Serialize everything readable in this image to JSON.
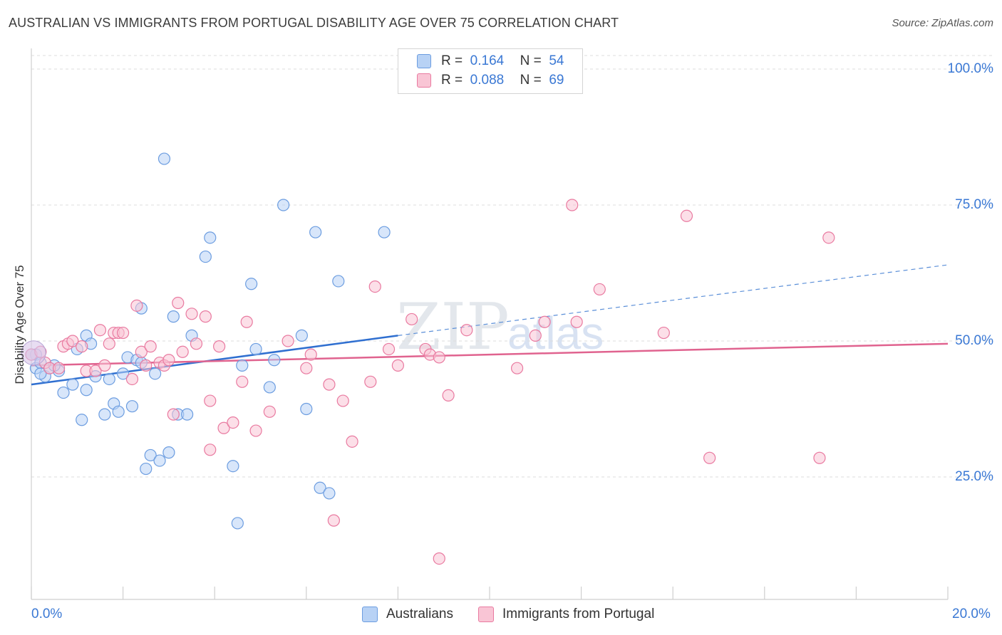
{
  "title": "AUSTRALIAN VS IMMIGRANTS FROM PORTUGAL DISABILITY AGE OVER 75 CORRELATION CHART",
  "source": "Source: ZipAtlas.com",
  "legend": {
    "r_label": "R =",
    "n_label": "N =",
    "rows": [
      {
        "r": "0.164",
        "n": "54",
        "color": "#a9c8f2"
      },
      {
        "r": "0.088",
        "n": "69",
        "color": "#f7b9cc"
      }
    ]
  },
  "chart_data": {
    "type": "scatter",
    "title": "AUSTRALIAN VS IMMIGRANTS FROM PORTUGAL DISABILITY AGE OVER 75 CORRELATION CHART",
    "xlabel": "",
    "ylabel": "Disability Age Over 75",
    "xlim": [
      0,
      20
    ],
    "ylim": [
      0,
      100
    ],
    "x_tick_labels": [
      "0.0%",
      "20.0%"
    ],
    "y_tick_labels": [
      "100.0%",
      "75.0%",
      "50.0%",
      "25.0%"
    ],
    "y_ticks": [
      100,
      75,
      50,
      25
    ],
    "grid": true,
    "legend_position": "top-center",
    "series": [
      {
        "name": "Australians",
        "color": "#6c9de0",
        "fill": "#b8d2f5",
        "trend": {
          "x0": 0,
          "y0": 42.0,
          "x1": 8.0,
          "y1": 51.0,
          "dashed_to_x": 20,
          "dashed_to_y": 64.0
        },
        "points": [
          [
            0.1,
            47.5
          ],
          [
            0.1,
            45.0
          ],
          [
            0.2,
            46.0
          ],
          [
            0.3,
            43.5
          ],
          [
            0.4,
            45.0
          ],
          [
            0.6,
            44.5
          ],
          [
            0.5,
            45.5
          ],
          [
            0.7,
            40.5
          ],
          [
            0.9,
            42.0
          ],
          [
            1.0,
            48.5
          ],
          [
            1.1,
            35.5
          ],
          [
            1.2,
            51.0
          ],
          [
            1.2,
            41.0
          ],
          [
            1.3,
            49.5
          ],
          [
            1.4,
            43.5
          ],
          [
            1.6,
            36.5
          ],
          [
            1.7,
            43.0
          ],
          [
            1.8,
            38.5
          ],
          [
            1.9,
            37.0
          ],
          [
            2.0,
            44.0
          ],
          [
            2.1,
            47.0
          ],
          [
            2.2,
            38.0
          ],
          [
            2.3,
            46.5
          ],
          [
            2.4,
            46.0
          ],
          [
            2.4,
            56.0
          ],
          [
            2.5,
            26.5
          ],
          [
            2.6,
            29.0
          ],
          [
            2.7,
            44.0
          ],
          [
            2.8,
            28.0
          ],
          [
            2.9,
            83.5
          ],
          [
            3.0,
            29.5
          ],
          [
            3.1,
            54.5
          ],
          [
            3.2,
            36.5
          ],
          [
            3.4,
            36.5
          ],
          [
            3.5,
            51.0
          ],
          [
            3.8,
            65.5
          ],
          [
            3.9,
            69.0
          ],
          [
            4.4,
            27.0
          ],
          [
            4.5,
            16.5
          ],
          [
            4.6,
            45.5
          ],
          [
            4.8,
            60.5
          ],
          [
            4.9,
            48.5
          ],
          [
            5.2,
            41.5
          ],
          [
            5.3,
            46.5
          ],
          [
            5.5,
            75.0
          ],
          [
            5.9,
            51.0
          ],
          [
            6.0,
            37.5
          ],
          [
            6.2,
            70.0
          ],
          [
            6.3,
            23.0
          ],
          [
            6.5,
            22.0
          ],
          [
            6.7,
            61.0
          ],
          [
            7.7,
            70.0
          ],
          [
            0.0,
            47.5
          ],
          [
            0.2,
            44.0
          ]
        ]
      },
      {
        "name": "Immigrants from Portugal",
        "color": "#e97aa0",
        "fill": "#f9c5d5",
        "trend": {
          "x0": 0,
          "y0": 45.5,
          "x1": 20,
          "y1": 49.5
        },
        "points": [
          [
            0.0,
            47.5
          ],
          [
            0.2,
            48.0
          ],
          [
            0.3,
            46.0
          ],
          [
            0.4,
            45.0
          ],
          [
            0.6,
            45.0
          ],
          [
            0.7,
            49.0
          ],
          [
            0.8,
            49.5
          ],
          [
            0.9,
            50.0
          ],
          [
            1.1,
            49.0
          ],
          [
            1.2,
            44.5
          ],
          [
            1.4,
            44.5
          ],
          [
            1.5,
            52.0
          ],
          [
            1.6,
            45.5
          ],
          [
            1.7,
            49.5
          ],
          [
            1.8,
            51.5
          ],
          [
            1.9,
            51.5
          ],
          [
            2.0,
            51.5
          ],
          [
            2.2,
            43.0
          ],
          [
            2.3,
            56.5
          ],
          [
            2.4,
            48.0
          ],
          [
            2.5,
            45.5
          ],
          [
            2.6,
            49.0
          ],
          [
            2.8,
            46.0
          ],
          [
            2.9,
            45.5
          ],
          [
            3.0,
            46.5
          ],
          [
            3.1,
            36.5
          ],
          [
            3.2,
            57.0
          ],
          [
            3.3,
            48.0
          ],
          [
            3.5,
            55.0
          ],
          [
            3.6,
            49.5
          ],
          [
            3.8,
            54.5
          ],
          [
            3.9,
            39.0
          ],
          [
            3.9,
            30.0
          ],
          [
            4.1,
            49.0
          ],
          [
            4.2,
            34.0
          ],
          [
            4.4,
            35.0
          ],
          [
            4.6,
            42.5
          ],
          [
            4.7,
            53.5
          ],
          [
            4.9,
            33.5
          ],
          [
            5.2,
            37.0
          ],
          [
            5.6,
            50.0
          ],
          [
            6.0,
            45.0
          ],
          [
            6.1,
            47.5
          ],
          [
            6.5,
            42.0
          ],
          [
            6.6,
            17.0
          ],
          [
            6.8,
            39.0
          ],
          [
            7.0,
            31.5
          ],
          [
            7.4,
            42.5
          ],
          [
            7.5,
            60.0
          ],
          [
            7.8,
            48.5
          ],
          [
            8.0,
            45.5
          ],
          [
            8.3,
            54.0
          ],
          [
            8.6,
            48.5
          ],
          [
            8.7,
            47.5
          ],
          [
            8.9,
            47.0
          ],
          [
            8.9,
            10.0
          ],
          [
            9.1,
            40.0
          ],
          [
            9.5,
            52.0
          ],
          [
            10.6,
            45.0
          ],
          [
            11.0,
            51.0
          ],
          [
            11.2,
            53.5
          ],
          [
            11.8,
            75.0
          ],
          [
            11.9,
            53.5
          ],
          [
            12.4,
            59.5
          ],
          [
            13.8,
            51.5
          ],
          [
            14.3,
            73.0
          ],
          [
            14.8,
            28.5
          ],
          [
            17.4,
            69.0
          ],
          [
            17.2,
            28.5
          ]
        ]
      }
    ]
  },
  "bottom_legend": [
    "Australians",
    "Immigrants from Portugal"
  ]
}
